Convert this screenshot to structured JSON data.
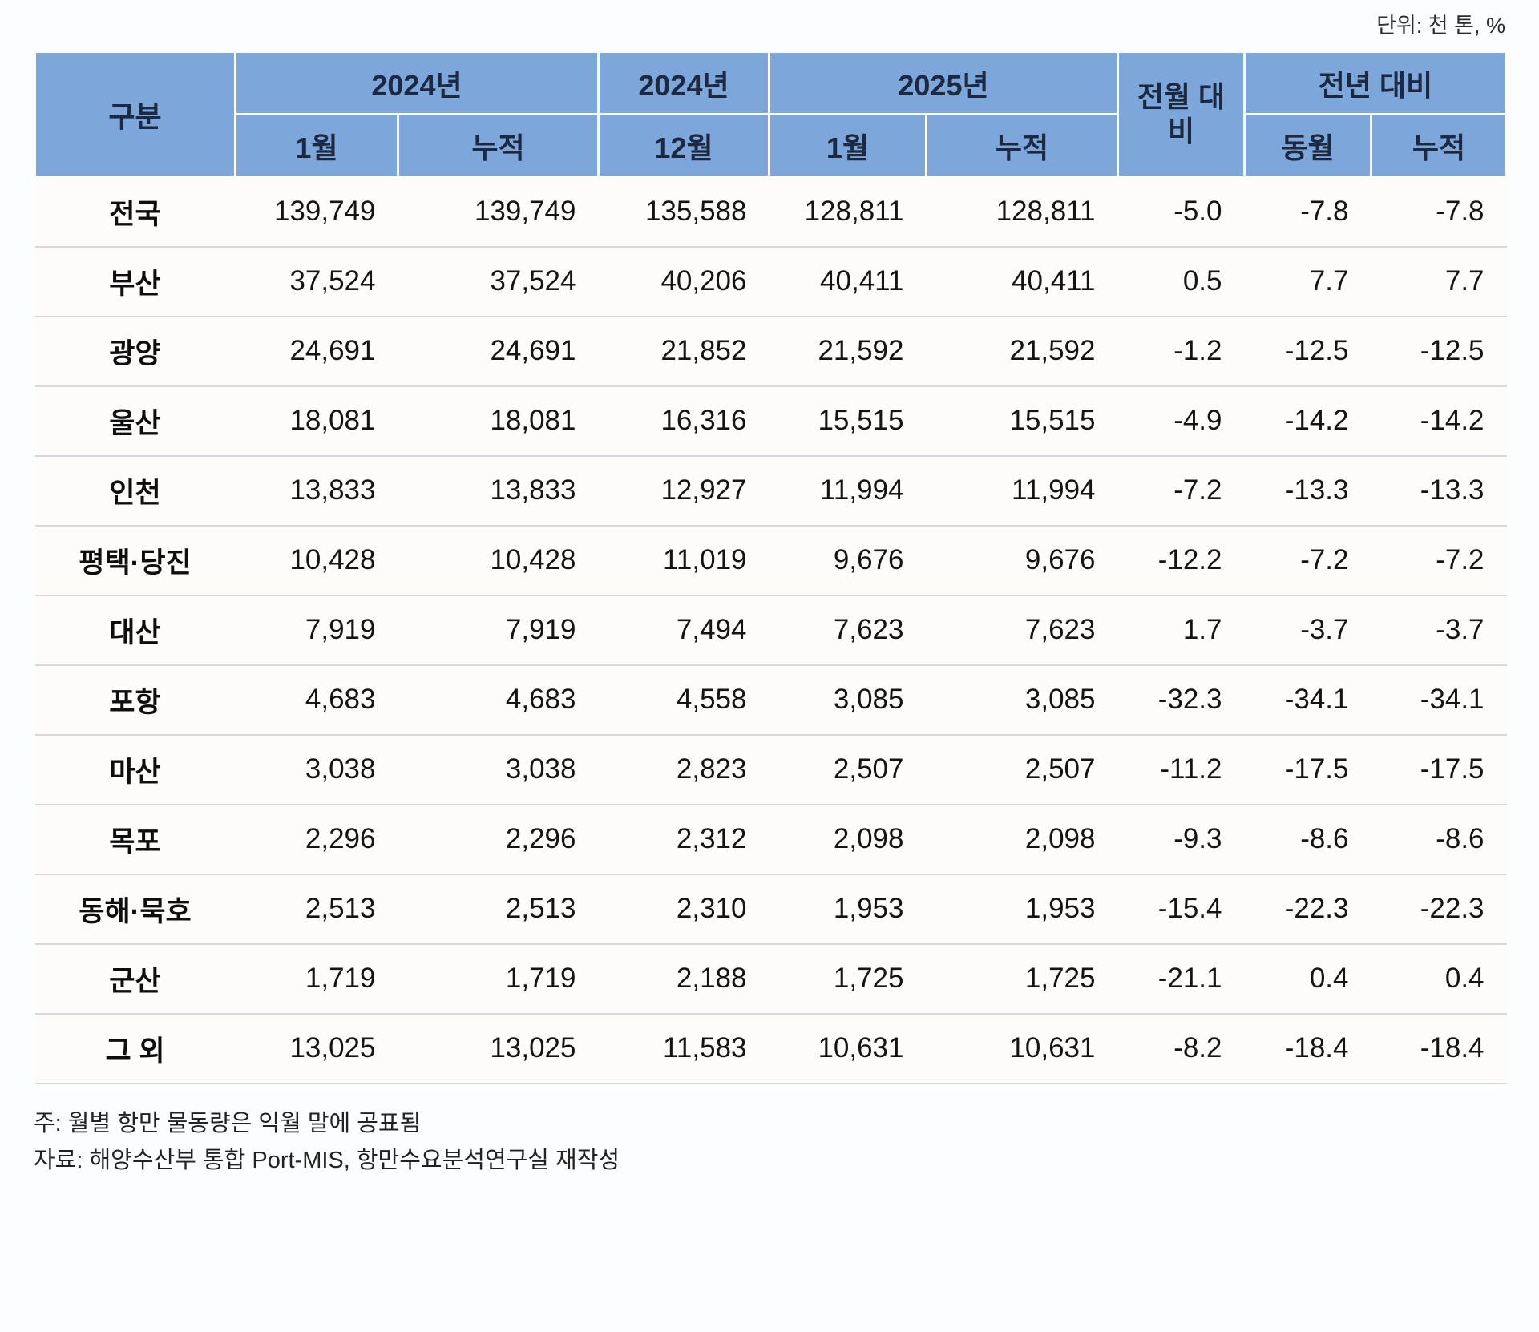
{
  "unit_label": "단위: 천 톤, %",
  "table": {
    "header": {
      "category": "구분",
      "group_2024_jan": "2024년",
      "group_2024_dec": "2024년",
      "group_2025": "2025년",
      "prev_month": "전월 대비",
      "prev_year": "전년 대비",
      "sub": [
        "1월",
        "누적",
        "12월",
        "1월",
        "누적",
        "동월",
        "누적"
      ]
    },
    "rows": [
      {
        "label": "전국",
        "values": [
          "139,749",
          "139,749",
          "135,588",
          "128,811",
          "128,811",
          "-5.0",
          "-7.8",
          "-7.8"
        ]
      },
      {
        "label": "부산",
        "values": [
          "37,524",
          "37,524",
          "40,206",
          "40,411",
          "40,411",
          "0.5",
          "7.7",
          "7.7"
        ]
      },
      {
        "label": "광양",
        "values": [
          "24,691",
          "24,691",
          "21,852",
          "21,592",
          "21,592",
          "-1.2",
          "-12.5",
          "-12.5"
        ]
      },
      {
        "label": "울산",
        "values": [
          "18,081",
          "18,081",
          "16,316",
          "15,515",
          "15,515",
          "-4.9",
          "-14.2",
          "-14.2"
        ]
      },
      {
        "label": "인천",
        "values": [
          "13,833",
          "13,833",
          "12,927",
          "11,994",
          "11,994",
          "-7.2",
          "-13.3",
          "-13.3"
        ]
      },
      {
        "label": "평택·당진",
        "values": [
          "10,428",
          "10,428",
          "11,019",
          "9,676",
          "9,676",
          "-12.2",
          "-7.2",
          "-7.2"
        ]
      },
      {
        "label": "대산",
        "values": [
          "7,919",
          "7,919",
          "7,494",
          "7,623",
          "7,623",
          "1.7",
          "-3.7",
          "-3.7"
        ]
      },
      {
        "label": "포항",
        "values": [
          "4,683",
          "4,683",
          "4,558",
          "3,085",
          "3,085",
          "-32.3",
          "-34.1",
          "-34.1"
        ]
      },
      {
        "label": "마산",
        "values": [
          "3,038",
          "3,038",
          "2,823",
          "2,507",
          "2,507",
          "-11.2",
          "-17.5",
          "-17.5"
        ]
      },
      {
        "label": "목포",
        "values": [
          "2,296",
          "2,296",
          "2,312",
          "2,098",
          "2,098",
          "-9.3",
          "-8.6",
          "-8.6"
        ]
      },
      {
        "label": "동해·묵호",
        "values": [
          "2,513",
          "2,513",
          "2,310",
          "1,953",
          "1,953",
          "-15.4",
          "-22.3",
          "-22.3"
        ]
      },
      {
        "label": "군산",
        "values": [
          "1,719",
          "1,719",
          "2,188",
          "1,725",
          "1,725",
          "-21.1",
          "0.4",
          "0.4"
        ]
      },
      {
        "label": "그 외",
        "values": [
          "13,025",
          "13,025",
          "11,583",
          "10,631",
          "10,631",
          "-8.2",
          "-18.4",
          "-18.4"
        ]
      }
    ]
  },
  "notes": [
    "주: 월별 항만 물동량은 익월 말에 공표됨",
    "자료: 해양수산부 통합 Port-MIS, 항만수요분석연구실 재작성"
  ],
  "colors": {
    "header_bg": "#7da7da",
    "header_text": "#1d2940",
    "row_divider": "#d7d9db",
    "page_bg": "#fcfdfe"
  },
  "chart_data": {
    "type": "table",
    "title": "항만 물동량 통계",
    "unit": "천 톤, %",
    "columns": [
      "구분",
      "2024년 1월",
      "2024년 누적",
      "2024년 12월",
      "2025년 1월",
      "2025년 누적",
      "전월 대비",
      "전년 대비 동월",
      "전년 대비 누적"
    ],
    "rows": [
      [
        "전국",
        139749,
        139749,
        135588,
        128811,
        128811,
        -5.0,
        -7.8,
        -7.8
      ],
      [
        "부산",
        37524,
        37524,
        40206,
        40411,
        40411,
        0.5,
        7.7,
        7.7
      ],
      [
        "광양",
        24691,
        24691,
        21852,
        21592,
        21592,
        -1.2,
        -12.5,
        -12.5
      ],
      [
        "울산",
        18081,
        18081,
        16316,
        15515,
        15515,
        -4.9,
        -14.2,
        -14.2
      ],
      [
        "인천",
        13833,
        13833,
        12927,
        11994,
        11994,
        -7.2,
        -13.3,
        -13.3
      ],
      [
        "평택·당진",
        10428,
        10428,
        11019,
        9676,
        9676,
        -12.2,
        -7.2,
        -7.2
      ],
      [
        "대산",
        7919,
        7919,
        7494,
        7623,
        7623,
        1.7,
        -3.7,
        -3.7
      ],
      [
        "포항",
        4683,
        4683,
        4558,
        3085,
        3085,
        -32.3,
        -34.1,
        -34.1
      ],
      [
        "마산",
        3038,
        3038,
        2823,
        2507,
        2507,
        -11.2,
        -17.5,
        -17.5
      ],
      [
        "목포",
        2296,
        2296,
        2312,
        2098,
        2098,
        -9.3,
        -8.6,
        -8.6
      ],
      [
        "동해·묵호",
        2513,
        2513,
        2310,
        1953,
        1953,
        -15.4,
        -22.3,
        -22.3
      ],
      [
        "군산",
        1719,
        1719,
        2188,
        1725,
        1725,
        -21.1,
        0.4,
        0.4
      ],
      [
        "그 외",
        13025,
        13025,
        11583,
        10631,
        10631,
        -8.2,
        -18.4,
        -18.4
      ]
    ]
  }
}
